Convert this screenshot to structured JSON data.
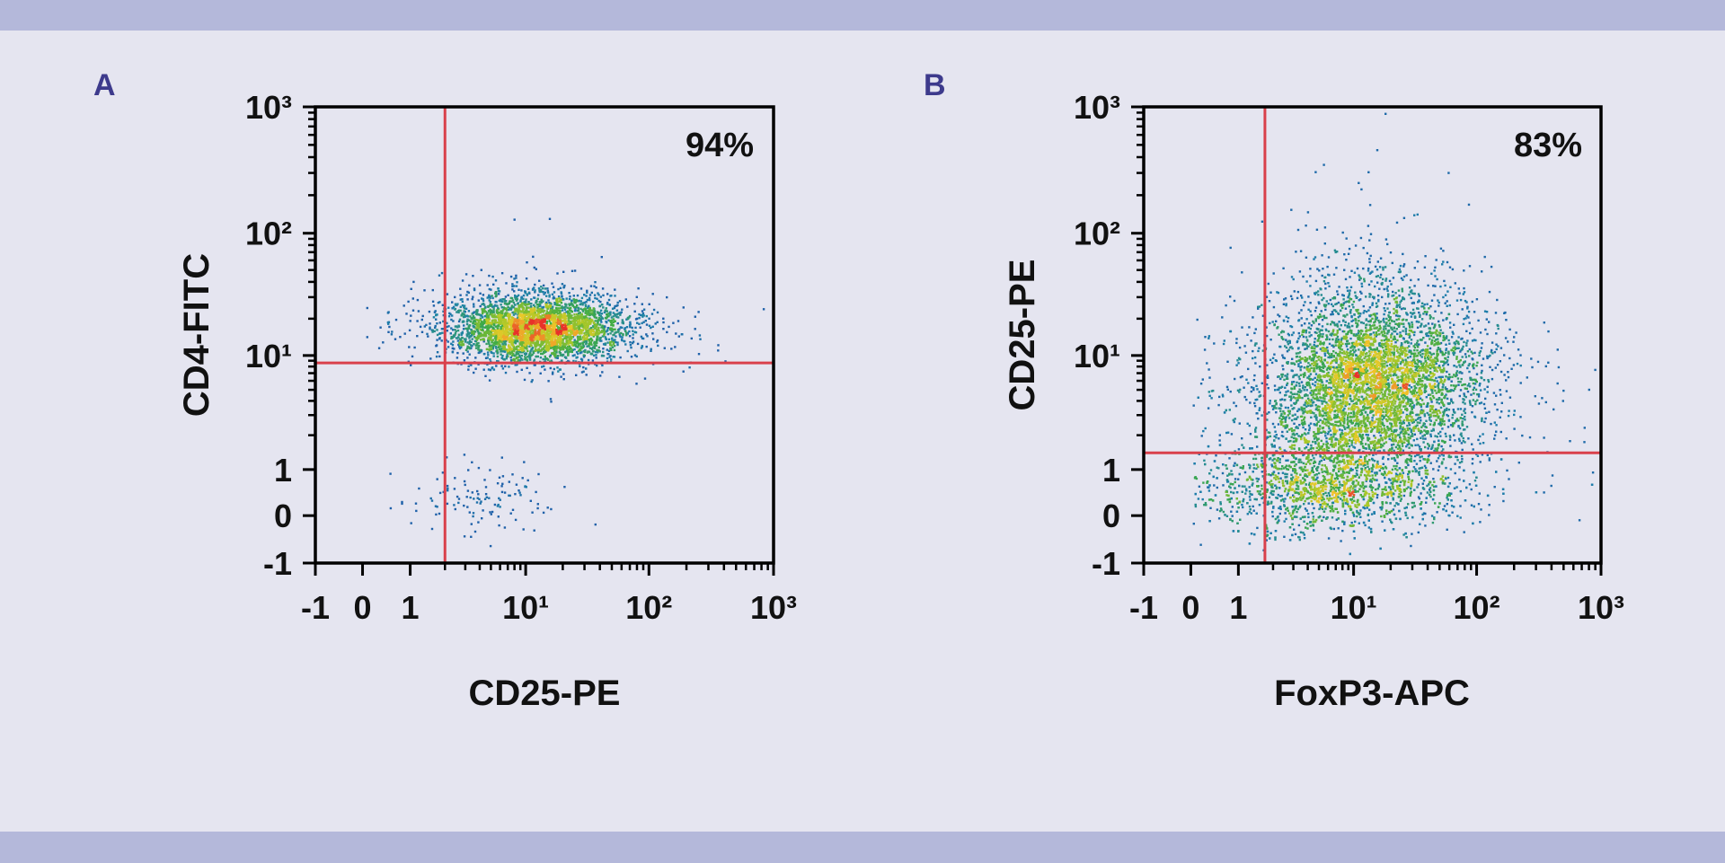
{
  "colors": {
    "band": "#b4b8da",
    "background": "#e5e5f0",
    "panel_label": "#3d3a8c",
    "gate": "#d9404b",
    "density_low": "#1f4fa8",
    "density_high": "#e8322a"
  },
  "chart_data": [
    {
      "type": "scatter",
      "subtype": "flow-cytometry density dot plot",
      "panel_label": "A",
      "xlabel": "CD25-PE",
      "ylabel": "CD4-FITC",
      "x_scale": "biexponential (linear -1..1, log above)",
      "y_scale": "biexponential (linear -1..1, log above)",
      "xlim": [
        -1,
        1000
      ],
      "ylim": [
        -1,
        1000
      ],
      "x_ticks": [
        -1,
        0,
        1,
        10,
        100,
        1000
      ],
      "x_tick_labels": [
        "-1",
        "0",
        "1",
        "10¹",
        "10²",
        "10³"
      ],
      "y_ticks": [
        -1,
        0,
        1,
        10,
        100,
        1000
      ],
      "y_tick_labels": [
        "-1",
        "0",
        "1",
        "10¹",
        "10²",
        "10³"
      ],
      "gates": {
        "x": 2,
        "y": 8.6
      },
      "annotation": "94%",
      "populations": [
        {
          "x_center": 12,
          "y_center": 17,
          "x_spread_decades": 0.36,
          "y_spread_decades": 0.13,
          "events": 3800
        },
        {
          "x_center": 4,
          "y_center": 0.4,
          "x_spread_decades": 0.3,
          "y_spread_linear": 0.35,
          "events": 120
        }
      ]
    },
    {
      "type": "scatter",
      "subtype": "flow-cytometry density dot plot",
      "panel_label": "B",
      "xlabel": "FoxP3-APC",
      "ylabel": "CD25-PE",
      "x_scale": "biexponential (linear -1..1, log above)",
      "y_scale": "biexponential (linear -1..1, log above)",
      "xlim": [
        -1,
        1000
      ],
      "ylim": [
        -1,
        1000
      ],
      "x_ticks": [
        -1,
        0,
        1,
        10,
        100,
        1000
      ],
      "x_tick_labels": [
        "-1",
        "0",
        "1",
        "10¹",
        "10²",
        "10³"
      ],
      "y_ticks": [
        -1,
        0,
        1,
        10,
        100,
        1000
      ],
      "y_tick_labels": [
        "-1",
        "0",
        "1",
        "10¹",
        "10²",
        "10³"
      ],
      "gates": {
        "x": 1.7,
        "y": 1.4
      },
      "annotation": "83%",
      "populations": [
        {
          "x_center": 14,
          "y_center": 6,
          "x_spread_decades": 0.42,
          "y_spread_decades": 0.38,
          "events": 5200
        },
        {
          "x_center": 6,
          "y_center": 0.35,
          "x_spread_decades": 0.5,
          "y_spread_linear": 0.4,
          "events": 2200
        }
      ]
    }
  ]
}
